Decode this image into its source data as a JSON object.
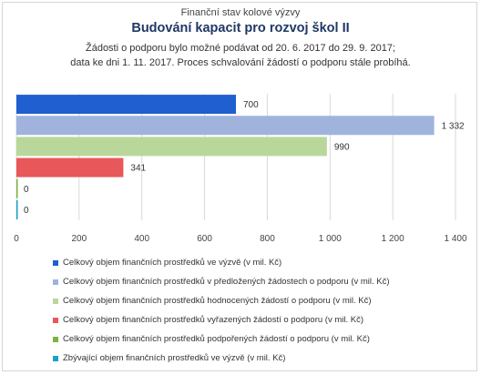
{
  "header": {
    "pretitle": "Finanční stav kolové výzvy",
    "title": "Budování kapacit pro rozvoj škol II",
    "subtitle_line1": "Žádosti o podporu bylo možné  podávat od 20. 6. 2017 do 29. 9. 2017;",
    "subtitle_line2": "data ke dni 1. 11. 2017. Proces schvalování žádostí o podporu stále probíhá."
  },
  "chart_data": {
    "type": "bar",
    "orientation": "horizontal",
    "xlim": [
      0,
      1400
    ],
    "ticks": [
      0,
      200,
      400,
      600,
      800,
      1000,
      1200,
      1400
    ],
    "tick_labels": [
      "0",
      "200",
      "400",
      "600",
      "800",
      "1 000",
      "1 200",
      "1 400"
    ],
    "grid": true,
    "legend_position": "bottom",
    "series": [
      {
        "name": "Celkový objem finančních prostředků ve výzvě (v mil. Kč)",
        "value": 700,
        "label": "700",
        "color": "#1f5fcf"
      },
      {
        "name": "Celkový objem finančních prostředků v předložených žádostech o podporu (v mil. Kč)",
        "value": 1332,
        "label": "1 332",
        "color": "#9fb3dd"
      },
      {
        "name": "Celkový objem finančních prostředků hodnocených žádostí o podporu (v mil. Kč)",
        "value": 990,
        "label": "990",
        "color": "#b9d79a"
      },
      {
        "name": "Celkový objem finančních prostředků vyřazených žádostí o podporu (v mil. Kč)",
        "value": 341,
        "label": "341",
        "color": "#e8575a"
      },
      {
        "name": "Celkový objem finančních prostředků podpořených žádostí o podporu (v mil. Kč)",
        "value": 0,
        "label": "0",
        "color": "#7cb342"
      },
      {
        "name": "Zbývající objem finančních prostředků ve výzvě (v mil. Kč)",
        "value": 0,
        "label": "0",
        "color": "#1ba1c9"
      }
    ]
  }
}
